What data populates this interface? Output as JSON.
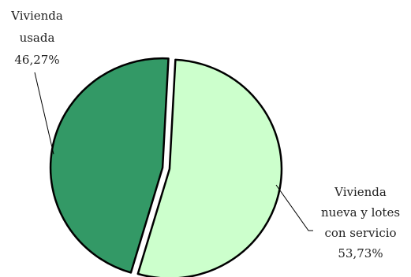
{
  "chart_data": {
    "type": "pie",
    "title": "",
    "slices": [
      {
        "label_lines": [
          "Vivienda",
          "nueva y lotes",
          "con servicio"
        ],
        "value": 53.73,
        "value_label": "53,73%",
        "color": "#ccffcc"
      },
      {
        "label_lines": [
          "Vivienda",
          "usada"
        ],
        "value": 46.27,
        "value_label": "46,27%",
        "color": "#339966"
      }
    ],
    "exploded": true,
    "legend": "none",
    "label_style": "callout"
  }
}
